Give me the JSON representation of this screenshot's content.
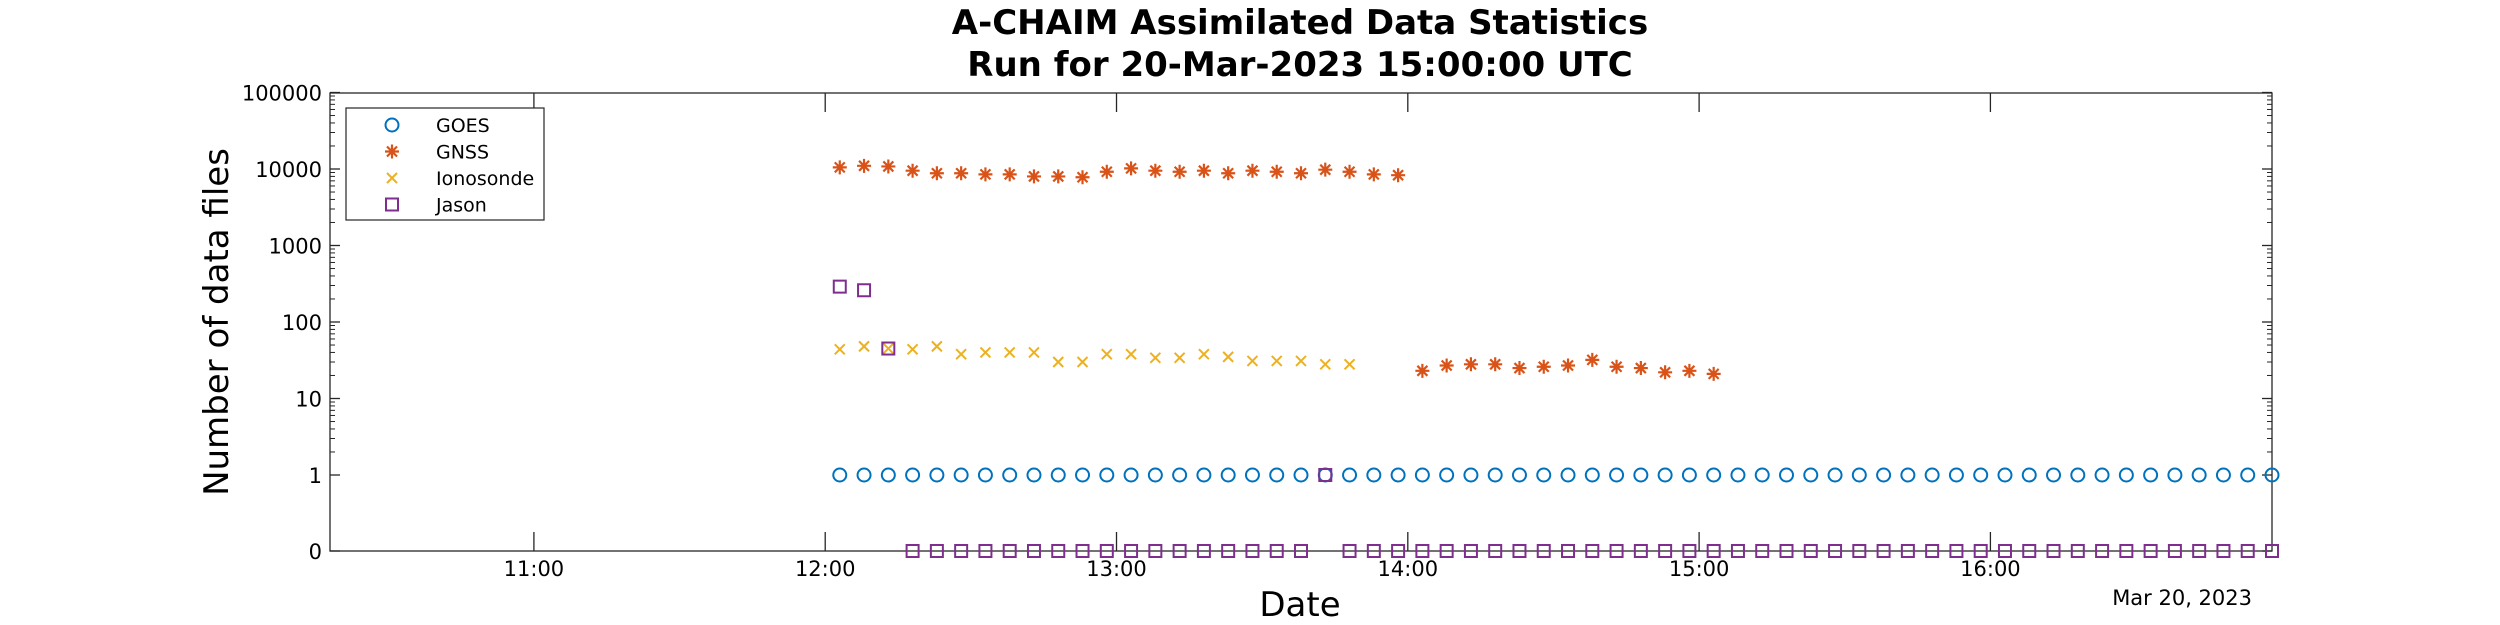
{
  "chart_data": {
    "type": "scatter",
    "title": [
      "A-CHAIM Assimilated Data Statistics",
      "Run for 20-Mar-2023 15:00:00 UTC"
    ],
    "xlabel": "Date",
    "ylabel": "Number of data files",
    "x_date_note": "Mar 20, 2023",
    "xlim": [
      "10:18",
      "16:58"
    ],
    "x_ticks": [
      "11:00",
      "12:00",
      "13:00",
      "14:00",
      "15:00",
      "16:00"
    ],
    "y_scale": "log",
    "y_zero_break": true,
    "y_ticks": [
      "0",
      "1",
      "10",
      "100",
      "1000",
      "10000",
      "100000"
    ],
    "grid": false,
    "legend_position": "top-left",
    "series": [
      {
        "name": "GOES",
        "marker": "circle",
        "color": "#0072BD",
        "x": [
          "12:03",
          "12:08",
          "12:13",
          "12:18",
          "12:23",
          "12:28",
          "12:33",
          "12:38",
          "12:43",
          "12:48",
          "12:53",
          "12:58",
          "13:03",
          "13:08",
          "13:13",
          "13:18",
          "13:23",
          "13:28",
          "13:33",
          "13:38",
          "13:43",
          "13:48",
          "13:53",
          "13:58",
          "14:03",
          "14:08",
          "14:13",
          "14:18",
          "14:23",
          "14:28",
          "14:33",
          "14:38",
          "14:43",
          "14:48",
          "14:53",
          "14:58",
          "15:03",
          "15:08",
          "15:13",
          "15:18",
          "15:23",
          "15:28",
          "15:33",
          "15:38",
          "15:43",
          "15:48",
          "15:53",
          "15:58",
          "16:03",
          "16:08",
          "16:13",
          "16:18",
          "16:23",
          "16:28",
          "16:33",
          "16:38",
          "16:43",
          "16:48",
          "16:53",
          "16:58"
        ],
        "y": [
          1,
          1,
          1,
          1,
          1,
          1,
          1,
          1,
          1,
          1,
          1,
          1,
          1,
          1,
          1,
          1,
          1,
          1,
          1,
          1,
          1,
          1,
          1,
          1,
          1,
          1,
          1,
          1,
          1,
          1,
          1,
          1,
          1,
          1,
          1,
          1,
          1,
          1,
          1,
          1,
          1,
          1,
          1,
          1,
          1,
          1,
          1,
          1,
          1,
          1,
          1,
          1,
          1,
          1,
          1,
          1,
          1,
          1,
          1,
          1
        ]
      },
      {
        "name": "GNSS",
        "marker": "asterisk",
        "color": "#D95319",
        "x": [
          "12:03",
          "12:08",
          "12:13",
          "12:18",
          "12:23",
          "12:28",
          "12:33",
          "12:38",
          "12:43",
          "12:48",
          "12:53",
          "12:58",
          "13:03",
          "13:08",
          "13:13",
          "13:18",
          "13:23",
          "13:28",
          "13:33",
          "13:38",
          "13:43",
          "13:48",
          "13:53",
          "13:58",
          "14:03",
          "14:08",
          "14:13",
          "14:18",
          "14:23",
          "14:28",
          "14:33",
          "14:38",
          "14:43",
          "14:48",
          "14:53",
          "14:58",
          "15:03"
        ],
        "y": [
          10500,
          11000,
          10800,
          9500,
          8800,
          8800,
          8500,
          8500,
          8000,
          8000,
          7800,
          9200,
          10200,
          9500,
          9200,
          9500,
          8800,
          9500,
          9200,
          8800,
          9800,
          9200,
          8500,
          8300,
          23,
          27,
          28,
          28,
          25,
          26,
          27,
          32,
          26,
          25,
          22,
          23,
          21
        ]
      },
      {
        "name": "Ionosonde",
        "marker": "x",
        "color": "#EDB120",
        "x": [
          "12:03",
          "12:08",
          "12:13",
          "12:18",
          "12:23",
          "12:28",
          "12:33",
          "12:38",
          "12:43",
          "12:48",
          "12:53",
          "12:58",
          "13:03",
          "13:08",
          "13:13",
          "13:18",
          "13:23",
          "13:28",
          "13:33",
          "13:38",
          "13:43",
          "13:48"
        ],
        "y": [
          44,
          48,
          45,
          44,
          48,
          38,
          40,
          40,
          40,
          30,
          30,
          38,
          38,
          34,
          34,
          38,
          35,
          31,
          31,
          31,
          28,
          28
        ]
      },
      {
        "name": "Jason",
        "marker": "square",
        "color": "#7E2F8E",
        "x": [
          "12:03",
          "12:08",
          "12:13",
          "12:18",
          "12:23",
          "12:28",
          "12:33",
          "12:38",
          "12:43",
          "12:48",
          "12:53",
          "12:58",
          "13:03",
          "13:08",
          "13:13",
          "13:18",
          "13:23",
          "13:28",
          "13:33",
          "13:38",
          "13:43",
          "13:48",
          "13:53",
          "13:58",
          "14:03",
          "14:08",
          "14:13",
          "14:18",
          "14:23",
          "14:28",
          "14:33",
          "14:38",
          "14:43",
          "14:48",
          "14:53",
          "14:58",
          "15:03",
          "15:08",
          "15:13",
          "15:18",
          "15:23",
          "15:28",
          "15:33",
          "15:38",
          "15:43",
          "15:48",
          "15:53",
          "15:58",
          "16:03",
          "16:08",
          "16:13",
          "16:18",
          "16:23",
          "16:28",
          "16:33",
          "16:38",
          "16:43",
          "16:48",
          "16:53",
          "16:58"
        ],
        "y": [
          290,
          260,
          45,
          0,
          0,
          0,
          0,
          0,
          0,
          0,
          0,
          0,
          0,
          0,
          0,
          0,
          0,
          0,
          0,
          0,
          1,
          0,
          0,
          0,
          0,
          0,
          0,
          0,
          0,
          0,
          0,
          0,
          0,
          0,
          0,
          0,
          0,
          0,
          0,
          0,
          0,
          0,
          0,
          0,
          0,
          0,
          0,
          0,
          0,
          0,
          0,
          0,
          0,
          0,
          0,
          0,
          0,
          0,
          0,
          0
        ]
      }
    ]
  }
}
